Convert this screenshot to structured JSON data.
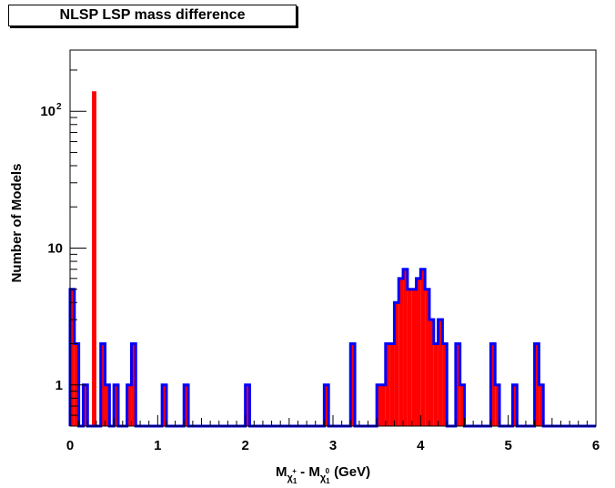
{
  "chart_data": {
    "type": "bar",
    "title": "NLSP LSP mass difference",
    "xlabel": "M_{χ₁⁺} - M_{χ₁⁰} (GeV)",
    "xlabel_parts": {
      "m1": "M",
      "sub1": "χ",
      "sub1b": "1",
      "sup1": "+",
      "dash": " - ",
      "m2": "M",
      "sub2": "χ",
      "sub2b": "1",
      "sup2": "0",
      "unit": "(GeV)"
    },
    "ylabel": "Number of Models",
    "y_scale": "log",
    "xlim": [
      0,
      6
    ],
    "ylim": [
      0.5,
      280
    ],
    "x_ticks": [
      "0",
      "1",
      "2",
      "3",
      "4",
      "5",
      "6"
    ],
    "y_ticks": [
      {
        "value": 1,
        "label": "1"
      },
      {
        "value": 10,
        "label": "10"
      },
      {
        "value": 100,
        "label": "10",
        "sup": "2"
      }
    ],
    "bin_width": 0.05,
    "series": [
      {
        "style": "outlined histogram",
        "fill": "#ff0000",
        "line": "#0000ff",
        "bins": [
          [
            0.0,
            5
          ],
          [
            0.05,
            2
          ],
          [
            0.15,
            1
          ],
          [
            0.35,
            2
          ],
          [
            0.4,
            1
          ],
          [
            0.5,
            1
          ],
          [
            0.65,
            1
          ],
          [
            0.7,
            2
          ],
          [
            1.05,
            1
          ],
          [
            1.3,
            1
          ],
          [
            2.0,
            1
          ],
          [
            2.9,
            1
          ],
          [
            3.2,
            2
          ],
          [
            3.5,
            1
          ],
          [
            3.55,
            1
          ],
          [
            3.6,
            2
          ],
          [
            3.65,
            2
          ],
          [
            3.7,
            4
          ],
          [
            3.75,
            6
          ],
          [
            3.8,
            7
          ],
          [
            3.85,
            5
          ],
          [
            3.9,
            5
          ],
          [
            3.95,
            6
          ],
          [
            4.0,
            7
          ],
          [
            4.05,
            5
          ],
          [
            4.1,
            3
          ],
          [
            4.15,
            2
          ],
          [
            4.2,
            3
          ],
          [
            4.25,
            2
          ],
          [
            4.4,
            2
          ],
          [
            4.45,
            1
          ],
          [
            4.8,
            2
          ],
          [
            4.85,
            1
          ],
          [
            5.05,
            1
          ],
          [
            5.3,
            2
          ],
          [
            5.35,
            1
          ]
        ]
      },
      {
        "style": "filled bar",
        "fill": "#ff0000",
        "line": "#ff0000",
        "bins": [
          [
            0.25,
            140
          ]
        ]
      }
    ],
    "colors": {
      "fill": "#ff0000",
      "line": "#0000ff",
      "axis": "#000000"
    }
  }
}
